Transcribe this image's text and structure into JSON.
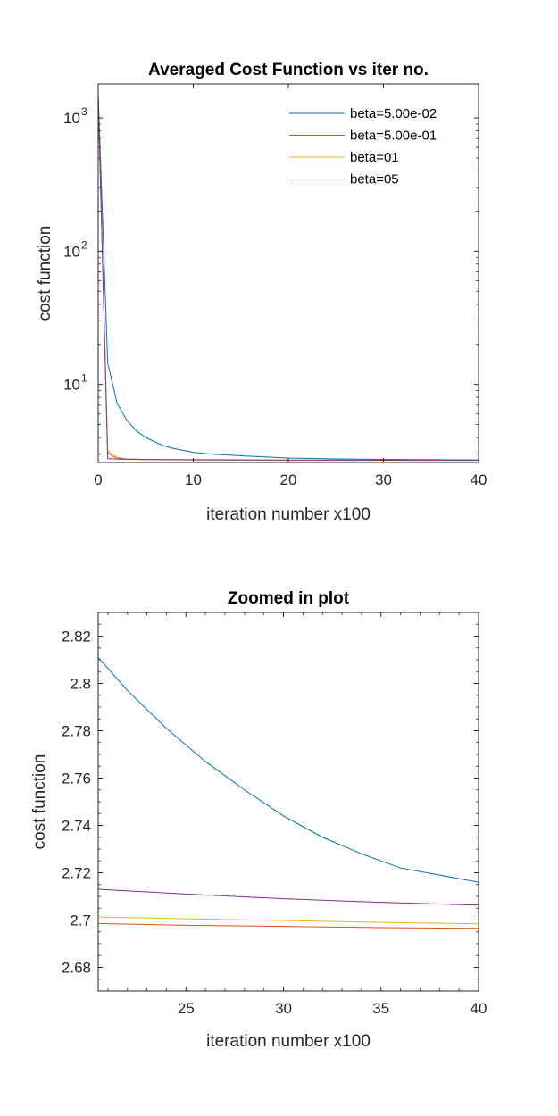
{
  "chart_data": [
    {
      "type": "line",
      "title": "Averaged Cost Function vs iter no.",
      "xlabel": "iteration number x100",
      "ylabel": "cost function",
      "yscale": "log",
      "xlim": [
        0,
        40
      ],
      "ylim": [
        2.6,
        1800
      ],
      "xticks": [
        0,
        10,
        20,
        30,
        40
      ],
      "yticks": [
        {
          "value": 10,
          "base": "10",
          "exp": "1"
        },
        {
          "value": 100,
          "base": "10",
          "exp": "2"
        },
        {
          "value": 1000,
          "base": "10",
          "exp": "3"
        }
      ],
      "grid": false,
      "legend_position": "top-right",
      "series": [
        {
          "name": "beta=5.00e-02",
          "color": "#0072BD",
          "x": [
            0,
            1,
            2,
            3,
            4,
            5,
            6,
            7,
            8,
            10,
            12,
            15,
            20,
            25,
            30,
            35,
            40
          ],
          "y": [
            1500,
            14.5,
            7.2,
            5.4,
            4.5,
            4.0,
            3.7,
            3.45,
            3.3,
            3.1,
            3.0,
            2.92,
            2.81,
            2.765,
            2.742,
            2.728,
            2.716
          ]
        },
        {
          "name": "beta=5.00e-01",
          "color": "#D95319",
          "x": [
            0,
            1,
            1.5,
            2,
            3,
            5,
            10,
            20,
            30,
            40
          ],
          "y": [
            1500,
            3.1,
            2.9,
            2.8,
            2.76,
            2.73,
            2.71,
            2.699,
            2.697,
            2.696
          ]
        },
        {
          "name": "beta=01",
          "color": "#EDB120",
          "x": [
            0,
            1,
            1.5,
            2,
            3,
            5,
            10,
            20,
            30,
            40
          ],
          "y": [
            1500,
            3.2,
            3.0,
            2.85,
            2.77,
            2.74,
            2.72,
            2.701,
            2.699,
            2.698
          ]
        },
        {
          "name": "beta=05",
          "color": "#7E2F8E",
          "x": [
            0,
            1,
            2,
            3,
            5,
            10,
            20,
            30,
            40
          ],
          "y": [
            1500,
            2.78,
            2.76,
            2.75,
            2.74,
            2.73,
            2.713,
            2.709,
            2.706
          ]
        }
      ]
    },
    {
      "type": "line",
      "title": "Zoomed in plot",
      "xlabel": "iteration number x100",
      "ylabel": "cost function",
      "yscale": "linear",
      "xlim": [
        20.5,
        40
      ],
      "ylim": [
        2.67,
        2.83
      ],
      "xticks": [
        25,
        30,
        35,
        40
      ],
      "yticks": [
        2.68,
        2.7,
        2.72,
        2.74,
        2.76,
        2.78,
        2.8,
        2.82
      ],
      "ytick_labels": [
        "2.68",
        "2.7",
        "2.72",
        "2.74",
        "2.76",
        "2.78",
        "2.8",
        "2.82"
      ],
      "grid": false,
      "series": [
        {
          "name": "beta=5.00e-02",
          "color": "#0072BD",
          "x": [
            20.5,
            22,
            24,
            26,
            28,
            30,
            32,
            34,
            36,
            38,
            40
          ],
          "y": [
            2.811,
            2.797,
            2.781,
            2.767,
            2.755,
            2.744,
            2.735,
            2.728,
            2.722,
            2.719,
            2.716
          ]
        },
        {
          "name": "beta=5.00e-01",
          "color": "#D95319",
          "x": [
            20.5,
            25,
            30,
            35,
            40
          ],
          "y": [
            2.6985,
            2.6978,
            2.6973,
            2.6968,
            2.6965
          ]
        },
        {
          "name": "beta=01",
          "color": "#EDB120",
          "x": [
            20.5,
            25,
            30,
            35,
            40
          ],
          "y": [
            2.7013,
            2.7005,
            2.6998,
            2.699,
            2.6984
          ]
        },
        {
          "name": "beta=05",
          "color": "#7E2F8E",
          "x": [
            20.5,
            25,
            30,
            35,
            40
          ],
          "y": [
            2.713,
            2.711,
            2.709,
            2.7075,
            2.7063
          ]
        }
      ]
    }
  ]
}
